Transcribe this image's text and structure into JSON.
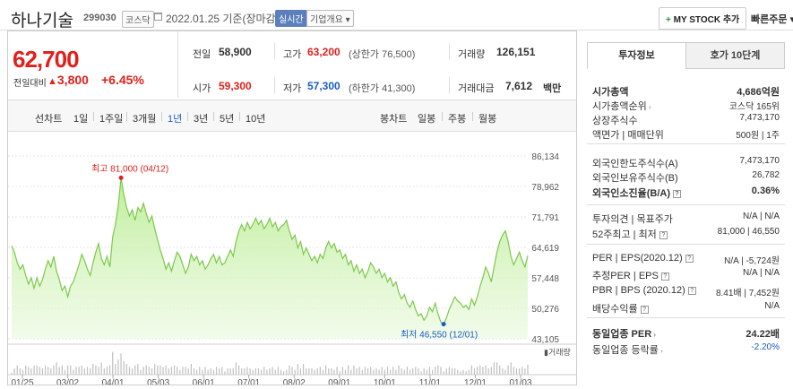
{
  "header": {
    "name": "하나기술",
    "code": "299030",
    "market_badge": "코스닥",
    "date": "2022.01.25 기준(장마감)",
    "realtime": "실시간",
    "overview": "기업개요 ▾",
    "mystock_plus": "+",
    "mystock_label": "MY STOCK 추가",
    "quick_order": "빠른주문 ▾"
  },
  "quote": {
    "price": "62,700",
    "change_label": "전일대비",
    "change_arrow": "▲",
    "change": "3,800",
    "rate": "+6.45%",
    "prev_label": "전일",
    "prev": "58,900",
    "high_label": "고가",
    "high": "63,200",
    "upper_limit": "(상한가 76,500)",
    "volume_label": "거래량",
    "volume": "126,151",
    "open_label": "시가",
    "open": "59,300",
    "low_label": "저가",
    "low": "57,300",
    "lower_limit": "(하한가 41,300)",
    "amount_label": "거래대금",
    "amount": "7,612",
    "amount_unit": "백만"
  },
  "ranges": {
    "line_label": "선차트",
    "items": [
      "1일",
      "1주일",
      "3개월",
      "1년",
      "3년",
      "5년",
      "10년"
    ],
    "selected": "1년",
    "candle_label": "봉차트",
    "candles": [
      "일봉",
      "주봉",
      "월봉"
    ]
  },
  "chart_data": {
    "type": "area",
    "y_ticks": [
      "86,134",
      "78,962",
      "71,791",
      "64,619",
      "57,448",
      "50,276",
      "43,105"
    ],
    "x_ticks": [
      "01/25",
      "03/02",
      "04/01",
      "05/03",
      "06/01",
      "07/01",
      "08/02",
      "09/01",
      "10/01",
      "11/01",
      "12/01",
      "01/03"
    ],
    "ylim": [
      43105,
      86134
    ],
    "high_annotation": "최고 81,000 (04/12)",
    "low_annotation": "최저 46,550 (12/01)",
    "volume_label": "거래량",
    "prices": [
      65000,
      63500,
      61000,
      59500,
      60500,
      58000,
      56000,
      57500,
      55000,
      57500,
      55500,
      57000,
      59500,
      61500,
      60000,
      62500,
      59000,
      57000,
      54500,
      55500,
      53000,
      55500,
      56500,
      58500,
      60500,
      63000,
      61500,
      59500,
      58000,
      61000,
      63500,
      65500,
      62000,
      60500,
      62500,
      60000,
      67000,
      70000,
      74500,
      81000,
      77000,
      74000,
      72000,
      73500,
      71000,
      74000,
      73000,
      75000,
      72500,
      70500,
      72000,
      69000,
      66500,
      64000,
      62000,
      59500,
      61000,
      59000,
      61500,
      63500,
      62500,
      60500,
      58500,
      60000,
      63000,
      61500,
      62500,
      60500,
      61500,
      59500,
      60500,
      62000,
      63000,
      61000,
      62500,
      60500,
      61000,
      62500,
      64000,
      62500,
      66000,
      68500,
      70000,
      68500,
      70500,
      69000,
      70000,
      71500,
      70000,
      71000,
      69000,
      70000,
      71500,
      69500,
      70500,
      68500,
      69500,
      70000,
      71000,
      68500,
      66500,
      67500,
      64500,
      66000,
      63000,
      64500,
      63000,
      61500,
      62500,
      61000,
      63000,
      62000,
      64500,
      66000,
      64500,
      65500,
      63500,
      64000,
      62000,
      63000,
      60500,
      61500,
      59000,
      60500,
      58500,
      59500,
      57500,
      59000,
      61000,
      60000,
      58500,
      59500,
      57500,
      58500,
      56500,
      57500,
      55500,
      56500,
      54000,
      52500,
      53500,
      51500,
      50500,
      52000,
      50000,
      48500,
      49000,
      47500,
      48500,
      50500,
      49500,
      51500,
      49000,
      47000,
      46550,
      48000,
      50000,
      51500,
      53000,
      52000,
      51500,
      50500,
      51000,
      50000,
      52500,
      51000,
      53000,
      55500,
      57500,
      60000,
      58500,
      56500,
      60000,
      63500,
      66000,
      67500,
      68500,
      66000,
      62500,
      60500,
      62000,
      63500,
      61500,
      60000,
      62700
    ]
  },
  "side": {
    "tab1": "투자정보",
    "tab2": "호가 10단계",
    "rows": [
      {
        "l": "시가총액",
        "v": "4,686억원",
        "bold": true
      },
      {
        "l": "시가총액순위",
        "v": "코스닥 165위",
        "arrow": true
      },
      {
        "l": "상장주식수",
        "v": "7,473,170"
      },
      {
        "l": "액면가 | 매매단위",
        "v": "500원 | 1주"
      },
      {
        "l": "외국인한도주식수(A)",
        "v": "7,473,170"
      },
      {
        "l": "외국인보유주식수(B)",
        "v": "26,782"
      },
      {
        "l": "외국인소진율(B/A)",
        "v": "0.36%",
        "bold": true,
        "q": true
      },
      {
        "l": "투자의견 | 목표주가",
        "v": "N/A | N/A"
      },
      {
        "l": "52주최고 | 최저",
        "v": "81,000 | 46,550",
        "q": true
      },
      {
        "l": "PER | EPS(2020.12)",
        "v": "N/A | -5,724원",
        "q": true
      },
      {
        "l": "추정PER | EPS",
        "v": "N/A | N/A",
        "q": true
      },
      {
        "l": "PBR | BPS (2020.12)",
        "v": "8.41배 | 7,452원",
        "q": true
      },
      {
        "l": "배당수익률",
        "v": "N/A",
        "q": true
      },
      {
        "l": "동일업종 PER",
        "v": "24.22배",
        "bold": true,
        "arrow": true
      },
      {
        "l": "동일업종 등락률",
        "v": "-2.20%",
        "arrow": true,
        "blue": true
      }
    ]
  }
}
